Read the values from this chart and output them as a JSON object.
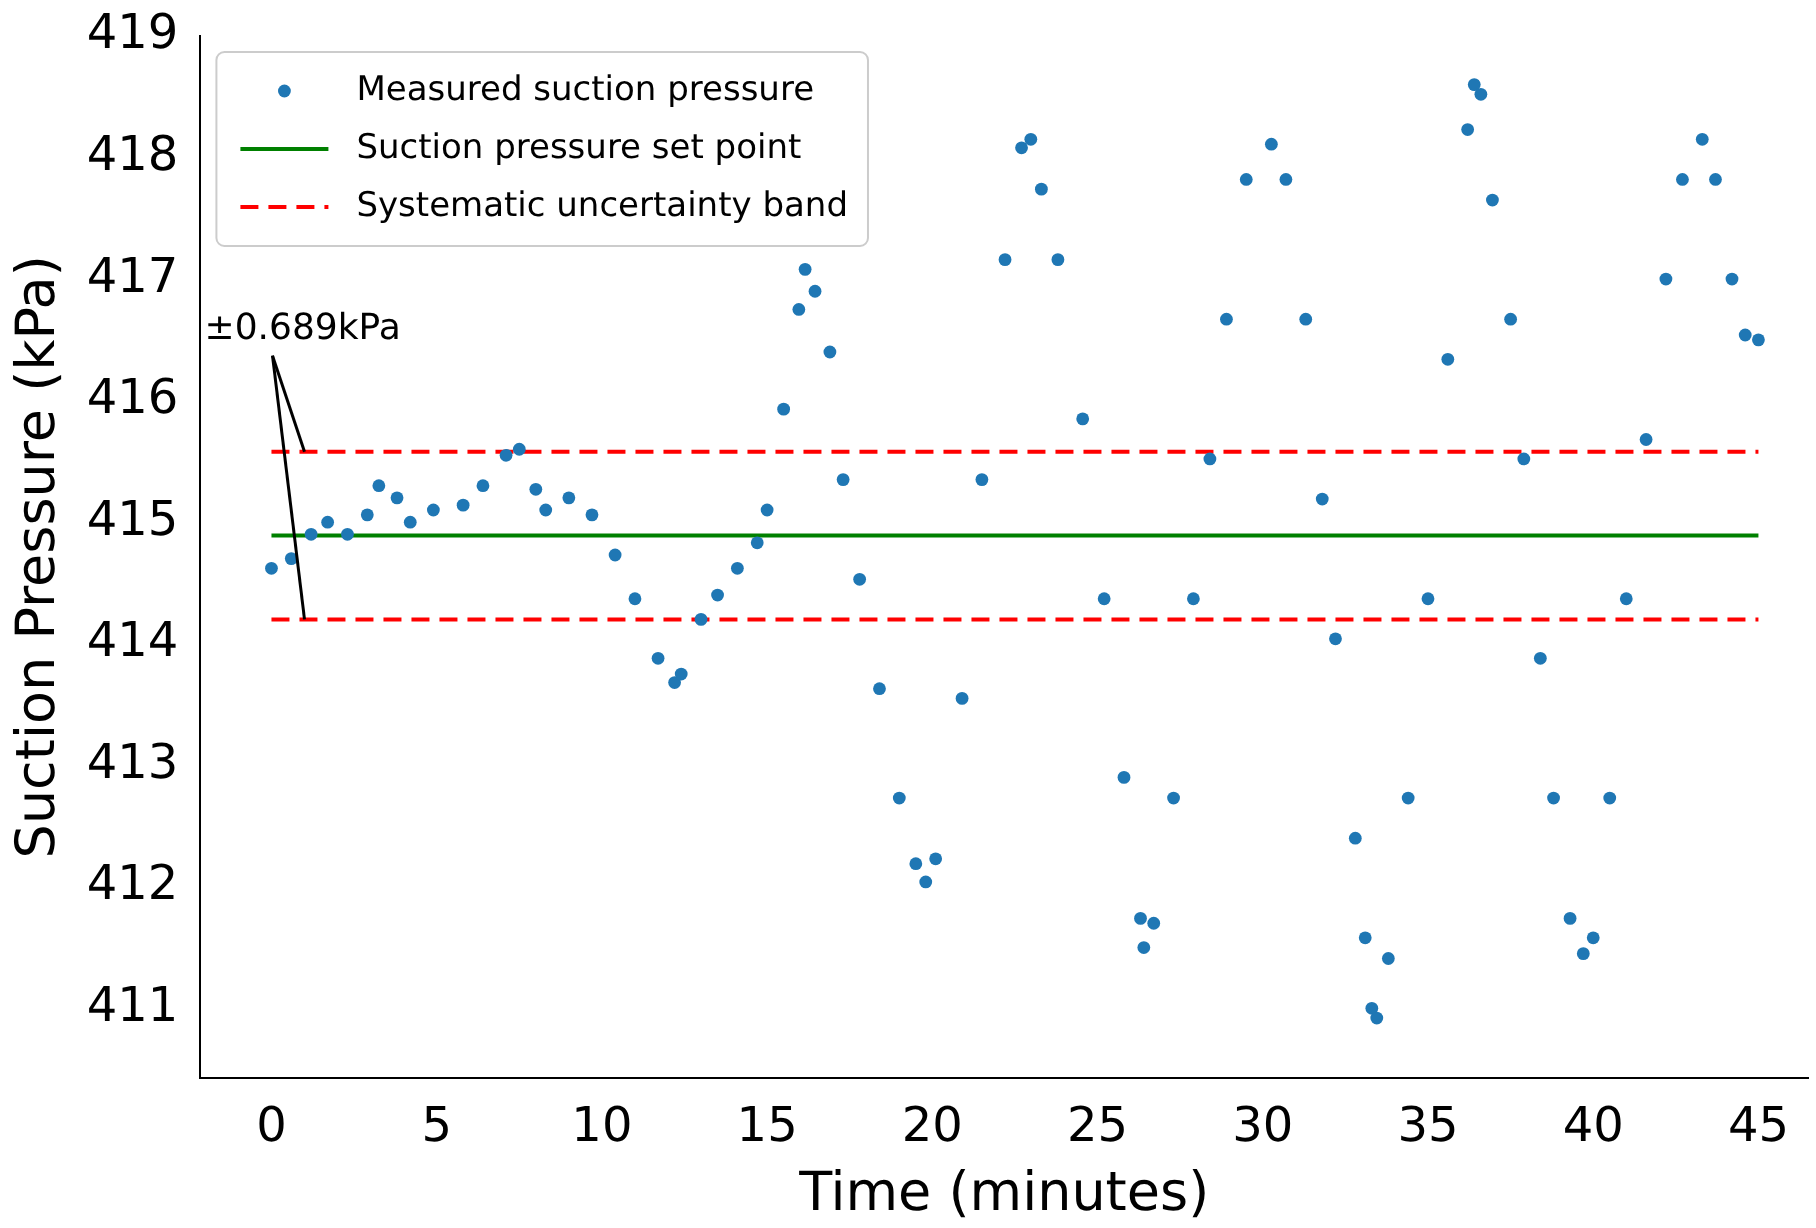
{
  "chart_data": {
    "type": "scatter",
    "xlabel": "Time (minutes)",
    "ylabel": "Suction Pressure (kPa)",
    "xlim": [
      -2.15,
      46.5
    ],
    "ylim": [
      410.43,
      419
    ],
    "xticks": [
      0,
      5,
      10,
      15,
      20,
      25,
      30,
      35,
      40,
      45
    ],
    "yticks": [
      411,
      412,
      413,
      414,
      415,
      416,
      417,
      418,
      419
    ],
    "grid": false,
    "legend": "top left",
    "annotations": [
      {
        "text": "±0.689kPa",
        "x": 1,
        "y": 415.58
      }
    ],
    "series": [
      {
        "name": "Measured suction pressure",
        "marker": "circle",
        "color": "#1f77b4",
        "x": [
          0,
          0.6,
          1.2,
          1.7,
          2.3,
          2.9,
          3.25,
          3.8,
          4.2,
          4.9,
          5.8,
          6.4,
          7.1,
          7.5,
          8.0,
          8.3,
          9.0,
          9.7,
          10.4,
          11.0,
          11.7,
          12.2,
          12.4,
          13.0,
          13.5,
          14.1,
          14.7,
          15.0,
          15.5,
          15.96,
          16.15,
          16.45,
          16.9,
          17.3,
          17.8,
          18.4,
          19.0,
          19.5,
          19.8,
          20.1,
          20.9,
          21.5,
          22.2,
          22.7,
          22.98,
          23.3,
          23.8,
          24.55,
          25.2,
          25.8,
          26.3,
          26.4,
          26.7,
          27.3,
          27.9,
          28.4,
          28.9,
          29.5,
          30.26,
          30.7,
          31.3,
          31.8,
          32.2,
          32.8,
          33.1,
          33.3,
          33.45,
          33.8,
          34.4,
          35.0,
          35.6,
          36.2,
          36.4,
          36.6,
          36.95,
          37.5,
          37.9,
          38.4,
          38.8,
          39.3,
          39.7,
          40.0,
          40.5,
          41.0,
          41.6,
          42.2,
          42.7,
          43.3,
          43.7,
          44.2,
          44.6,
          45
        ],
        "values": [
          414.62,
          414.7,
          414.9,
          415.0,
          414.9,
          415.06,
          415.3,
          415.2,
          415.0,
          415.1,
          415.14,
          415.3,
          415.55,
          415.6,
          415.27,
          415.1,
          415.2,
          415.06,
          414.73,
          414.37,
          413.88,
          413.68,
          413.75,
          414.2,
          414.4,
          414.62,
          414.83,
          415.1,
          415.93,
          416.75,
          417.08,
          416.9,
          416.4,
          415.35,
          414.53,
          413.63,
          412.73,
          412.19,
          412.04,
          412.23,
          413.55,
          415.35,
          417.16,
          418.08,
          418.15,
          417.74,
          417.16,
          415.85,
          414.37,
          412.9,
          411.74,
          411.5,
          411.7,
          412.73,
          414.37,
          415.52,
          416.67,
          417.82,
          418.11,
          417.82,
          416.67,
          415.19,
          414.04,
          412.4,
          411.58,
          411.0,
          410.92,
          411.41,
          412.73,
          414.37,
          416.34,
          418.23,
          418.6,
          418.52,
          417.65,
          416.67,
          415.52,
          413.88,
          412.73,
          411.74,
          411.45,
          411.58,
          412.73,
          414.37,
          415.68,
          417.0,
          417.82,
          418.15,
          417.82,
          417.0,
          416.54,
          416.5
        ]
      },
      {
        "name": "Suction pressure set point",
        "type": "line",
        "color": "#008000",
        "line_style": "solid",
        "x": [
          0,
          45
        ],
        "values": [
          414.89,
          414.89
        ]
      },
      {
        "name": "Systematic uncertainty band",
        "type": "line",
        "color": "#ff0000",
        "line_style": "dashed",
        "x": [
          0,
          45
        ],
        "values": [
          415.58,
          415.58
        ]
      },
      {
        "type": "line",
        "color": "#ff0000",
        "line_style": "dashed",
        "x": [
          0,
          45
        ],
        "values": [
          414.2,
          414.2
        ]
      }
    ]
  }
}
